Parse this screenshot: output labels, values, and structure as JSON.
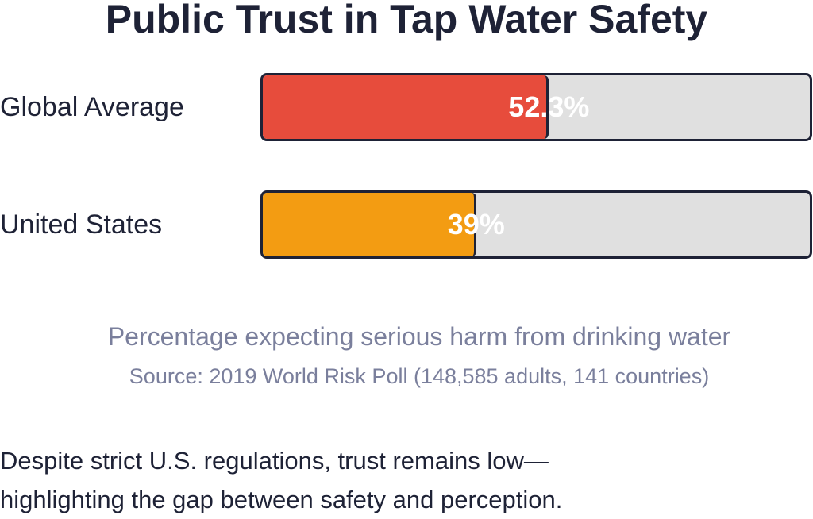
{
  "chart_data": {
    "type": "bar",
    "orientation": "horizontal",
    "title": "Public Trust in Tap Water Safety",
    "categories": [
      "Global Average",
      "United States"
    ],
    "values": [
      52.3,
      39
    ],
    "value_labels": [
      "52.3%",
      "39%"
    ],
    "colors": [
      "#e74c3c",
      "#f39c12"
    ],
    "track_color": "#e0e0e0",
    "xlim": [
      0,
      100
    ],
    "grid": false,
    "legend": "none",
    "subtitle": "Percentage expecting serious harm from drinking water",
    "source": "Source: 2019 World Risk Poll (148,585 adults, 141 countries)"
  },
  "caption": {
    "line1": "Despite strict U.S. regulations, trust remains low—",
    "line2": "highlighting the gap between safety and perception."
  }
}
